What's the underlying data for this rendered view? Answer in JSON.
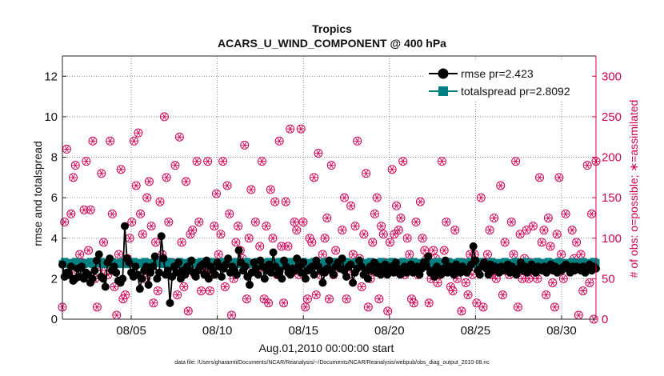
{
  "chart_data": {
    "type": "line",
    "title": "Tropics",
    "subtitle": "ACARS_U_WIND_COMPONENT @ 400 hPa",
    "xlabel": "Aug.01,2010 00:00:00 start",
    "ylabel": "rmse and totalspread",
    "ylabel_right": "# of obs: o=possible; ∗=assimilated",
    "footnote": "data file: /Users/gharamti/Documents/NCAR/Reanalysis/~/Documents/NCAR/Reanalysis/webpub/obs_diag_output_2010-08.nc",
    "x_ticks": [
      {
        "day": 5,
        "label": "08/05"
      },
      {
        "day": 10,
        "label": "08/10"
      },
      {
        "day": 15,
        "label": "08/15"
      },
      {
        "day": 20,
        "label": "08/20"
      },
      {
        "day": 25,
        "label": "08/25"
      },
      {
        "day": 30,
        "label": "08/30"
      }
    ],
    "xlim": [
      1,
      32
    ],
    "ylim": [
      0,
      13
    ],
    "y_ticks": [
      0,
      2,
      4,
      6,
      8,
      10,
      12
    ],
    "ylim_right": [
      0,
      325
    ],
    "y_ticks_right": [
      0,
      50,
      100,
      150,
      200,
      250,
      300
    ],
    "series": [
      {
        "name": "rmse pr=2.423",
        "color": "#000000",
        "values": [
          2.7,
          2.1,
          2.3,
          2.2,
          2.6,
          1.9,
          2.0,
          2.5,
          2.1,
          2.6,
          2.0,
          2.3,
          2.2,
          1.8,
          2.0,
          2.4,
          2.9,
          3.2,
          2.1,
          2.0,
          1.6,
          2.8,
          3.0,
          2.4,
          2.6,
          2.3,
          1.9,
          1.8,
          2.0,
          4.6,
          3.0,
          2.8,
          2.3,
          2.1,
          2.6,
          2.2,
          1.5,
          2.0,
          2.4,
          2.6,
          1.7,
          2.3,
          2.6,
          3.1,
          2.0,
          2.3,
          4.1,
          3.0,
          2.2,
          2.4,
          0.8,
          2.1,
          2.6,
          2.3,
          2.8,
          2.0,
          2.4,
          2.2,
          2.6,
          2.4,
          2.9,
          2.3,
          2.1,
          2.4,
          2.6,
          2.7,
          2.2,
          2.9,
          2.0,
          2.6,
          2.4,
          2.2,
          2.8,
          2.6,
          2.1,
          2.5,
          2.7,
          3.0,
          2.3,
          2.6,
          2.4,
          2.2,
          3.4,
          2.8,
          2.4,
          2.6,
          2.1,
          1.7,
          2.3,
          2.8,
          2.5,
          2.2,
          2.9,
          2.6,
          2.0,
          2.4,
          2.7,
          2.3,
          3.3,
          2.6,
          2.2,
          2.4,
          2.0,
          2.9,
          2.6,
          2.3,
          2.2,
          2.5,
          2.4,
          3.0,
          2.6,
          2.3,
          2.8,
          2.0,
          2.4,
          2.5,
          2.6,
          2.2,
          2.9,
          2.6,
          2.4,
          1.8,
          2.3,
          2.5,
          2.9,
          2.4,
          2.2,
          2.6,
          2.8,
          2.5,
          3.0,
          2.4,
          2.1,
          2.6,
          2.7,
          1.8,
          2.3,
          2.5,
          2.9,
          2.6,
          2.2,
          2.4,
          2.0,
          2.6,
          2.4,
          2.8,
          2.3,
          2.6,
          2.2,
          2.5,
          2.7,
          2.2,
          2.4,
          2.6,
          2.3,
          2.8,
          2.5,
          2.2,
          2.4,
          2.6,
          2.3,
          2.5,
          2.7,
          2.3,
          2.4,
          2.6,
          2.2,
          2.5,
          2.8,
          2.6,
          3.1,
          2.3,
          2.4,
          2.1,
          2.6,
          2.4,
          2.2,
          2.5,
          2.9,
          2.3,
          2.6,
          2.4,
          2.2,
          2.7,
          2.5,
          2.3,
          2.6,
          2.4,
          2.3,
          2.5,
          2.7,
          3.6,
          2.9,
          2.4,
          2.2,
          2.6,
          2.8,
          2.5,
          2.2,
          2.7,
          2.4,
          2.6,
          2.5,
          2.3,
          2.6,
          2.4,
          2.5,
          2.7,
          2.3,
          2.6,
          2.4,
          2.2,
          2.5,
          2.8,
          2.4,
          2.6,
          2.3,
          2.5,
          2.7,
          2.4,
          2.3,
          2.6,
          2.5,
          2.4,
          2.6,
          2.3,
          2.5,
          2.7,
          2.4,
          2.6,
          2.3,
          2.5,
          2.4,
          2.6,
          2.7,
          2.5,
          2.3,
          2.6,
          2.4,
          2.6,
          2.5,
          2.4,
          2.6,
          2.3,
          2.5,
          2.7,
          2.4,
          2.6,
          2.5
        ]
      },
      {
        "name": "totalspread pr=2.8092",
        "color": "#008080",
        "values": [
          2.75,
          2.85,
          2.8,
          2.7,
          2.75,
          2.8,
          2.85,
          2.7,
          2.75,
          2.8,
          2.7,
          2.8,
          2.75,
          2.85,
          2.7,
          2.8,
          2.75,
          2.8,
          2.85,
          2.7,
          2.75,
          2.8,
          2.7,
          2.85,
          2.75,
          2.8,
          2.7,
          2.75,
          2.85,
          2.8,
          2.7,
          2.75,
          2.8,
          2.85,
          2.7,
          2.8,
          2.75,
          2.7,
          2.85,
          2.8,
          2.75,
          2.7,
          2.8,
          2.85,
          2.75,
          2.8,
          2.7,
          2.75,
          2.8,
          2.85,
          2.7,
          2.75,
          2.8,
          2.7,
          2.85,
          2.75,
          2.8,
          2.7,
          2.75,
          2.85,
          2.8,
          2.7,
          2.75,
          2.8,
          2.85,
          2.7,
          2.8,
          2.75,
          2.7,
          2.85,
          2.8,
          2.75,
          2.7,
          2.8,
          2.85,
          2.75,
          2.8,
          2.7,
          2.75,
          2.8,
          2.85,
          2.7,
          2.75,
          2.8,
          2.7,
          2.85,
          2.75,
          2.8,
          2.7,
          2.75,
          2.85,
          2.8,
          2.7,
          2.75,
          2.8,
          2.85,
          2.7,
          2.8,
          2.75,
          2.7,
          2.85,
          2.8,
          2.75,
          2.7,
          2.8,
          2.85,
          2.75,
          2.8,
          2.7,
          2.75,
          2.8,
          2.85,
          2.7,
          2.75,
          2.8,
          2.7,
          2.85,
          2.75,
          2.8,
          2.7,
          2.75,
          2.85,
          2.8,
          2.7,
          2.75,
          2.8,
          2.85,
          2.7,
          2.8,
          2.75,
          2.7,
          2.85,
          2.8,
          2.75,
          2.7,
          2.8,
          2.85,
          2.75,
          2.8,
          2.7,
          2.75,
          2.8,
          2.85,
          2.7,
          2.75,
          2.8,
          2.7,
          2.85,
          2.75,
          2.8,
          2.7,
          2.75,
          2.85,
          2.8,
          2.7,
          2.75,
          2.8,
          2.85,
          2.7,
          2.8,
          2.75,
          2.7,
          2.85,
          2.8,
          2.75,
          2.7,
          2.8,
          2.85,
          2.75,
          2.8,
          2.7,
          2.75,
          2.8,
          2.85,
          2.7,
          2.75,
          2.8,
          2.7,
          2.85,
          2.75,
          2.8,
          2.7,
          2.75,
          2.85,
          2.8,
          2.7,
          2.75,
          2.8,
          2.85,
          2.7,
          2.8,
          2.75,
          2.7,
          2.85,
          2.8,
          2.75,
          2.7,
          2.8,
          2.85,
          2.75,
          2.8,
          2.7,
          2.75,
          2.8,
          2.85,
          2.7,
          2.75,
          2.8,
          2.7,
          2.85,
          2.75,
          2.8,
          2.7,
          2.75,
          2.85,
          2.8,
          2.7,
          2.75,
          2.8,
          2.85,
          2.7,
          2.8,
          2.75,
          2.7,
          2.85,
          2.8,
          2.75,
          2.7,
          2.8,
          2.85,
          2.75,
          2.8,
          2.7,
          2.75,
          2.8,
          2.85,
          2.7,
          2.75,
          2.8,
          2.7,
          2.85,
          2.75,
          2.8,
          2.7,
          2.75,
          2.85,
          2.8
        ]
      },
      {
        "name": "# of obs",
        "color": "#cc0055",
        "marker": "o=possible; ∗=assimilated",
        "values": [
          15,
          120,
          210,
          55,
          130,
          175,
          190,
          60,
          80,
          70,
          135,
          195,
          85,
          135,
          220,
          50,
          15,
          65,
          180,
          95,
          60,
          55,
          220,
          130,
          40,
          5,
          80,
          185,
          25,
          30,
          75,
          100,
          120,
          220,
          165,
          230,
          130,
          105,
          50,
          150,
          170,
          115,
          20,
          95,
          35,
          145,
          80,
          250,
          175,
          120,
          65,
          70,
          190,
          30,
          225,
          95,
          40,
          170,
          10,
          105,
          110,
          55,
          195,
          120,
          35,
          60,
          60,
          195,
          35,
          55,
          115,
          155,
          80,
          105,
          195,
          40,
          165,
          130,
          5,
          50,
          95,
          115,
          85,
          75,
          215,
          25,
          100,
          160,
          65,
          120,
          60,
          90,
          195,
          25,
          115,
          20,
          160,
          100,
          145,
          55,
          220,
          90,
          20,
          145,
          90,
          235,
          60,
          120,
          110,
          55,
          235,
          120,
          15,
          25,
          100,
          95,
          175,
          30,
          205,
          55,
          80,
          100,
          125,
          25,
          190,
          55,
          85,
          70,
          65,
          110,
          150,
          25,
          55,
          140,
          80,
          115,
          220,
          75,
          40,
          105,
          180,
          15,
          50,
          95,
          130,
          150,
          25,
          115,
          105,
          70,
          10,
          95,
          185,
          105,
          140,
          110,
          125,
          195,
          55,
          100,
          80,
          25,
          20,
          120,
          55,
          145,
          100,
          85,
          75,
          20,
          50,
          85,
          75,
          45,
          55,
          195,
          85,
          120,
          60,
          40,
          35,
          110,
          50,
          65,
          10,
          70,
          45,
          30,
          80,
          55,
          80,
          20,
          65,
          150,
          15,
          70,
          80,
          110,
          55,
          125,
          50,
          60,
          165,
          30,
          95,
          60,
          55,
          120,
          80,
          195,
          15,
          105,
          50,
          75,
          110,
          50,
          70,
          115,
          55,
          50,
          175,
          95,
          110,
          30,
          125,
          90,
          45,
          15,
          105,
          175,
          80,
          50,
          130,
          65,
          60,
          110,
          75,
          95,
          5,
          80,
          35,
          60,
          190,
          45,
          130,
          0,
          195
        ]
      }
    ]
  }
}
